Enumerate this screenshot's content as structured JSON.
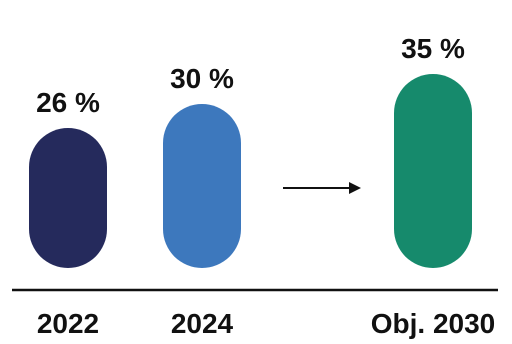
{
  "chart_data": {
    "type": "bar",
    "title": "",
    "xlabel": "",
    "ylabel": "",
    "unit": "%",
    "categories": [
      "2022",
      "2024",
      "Obj. 2030"
    ],
    "values": [
      26,
      30,
      35
    ],
    "value_labels": [
      "26 %",
      "30 %",
      "35 %"
    ],
    "colors": [
      "#252a5c",
      "#3d78bd",
      "#168a6c"
    ],
    "annotation": "arrow from 2024 to Obj. 2030",
    "ylim": [
      0,
      40
    ],
    "grid": false,
    "legend": "none"
  }
}
